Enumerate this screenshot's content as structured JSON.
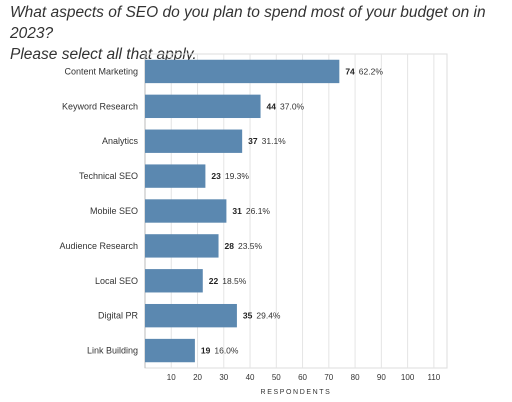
{
  "title": {
    "line1": "What aspects of SEO do you plan to spend most of your budget on in 2023?",
    "line2": "Please select all that apply."
  },
  "chart_data": {
    "type": "bar",
    "orientation": "horizontal",
    "categories": [
      "Content Marketing",
      "Keyword Research",
      "Analytics",
      "Technical SEO",
      "Mobile SEO",
      "Audience Research",
      "Local SEO",
      "Digital PR",
      "Link Building"
    ],
    "values": [
      74,
      44,
      37,
      23,
      31,
      28,
      22,
      35,
      19
    ],
    "percent_labels": [
      "62.2%",
      "37.0%",
      "31.1%",
      "19.3%",
      "26.1%",
      "23.5%",
      "18.5%",
      "29.4%",
      "16.0%"
    ],
    "xlabel": "RESPONDENTS",
    "xlim": [
      0,
      115
    ],
    "xticks": [
      10,
      20,
      30,
      40,
      50,
      60,
      70,
      80,
      90,
      100,
      110
    ],
    "bar_color": "#5b88b0",
    "grid": true
  }
}
